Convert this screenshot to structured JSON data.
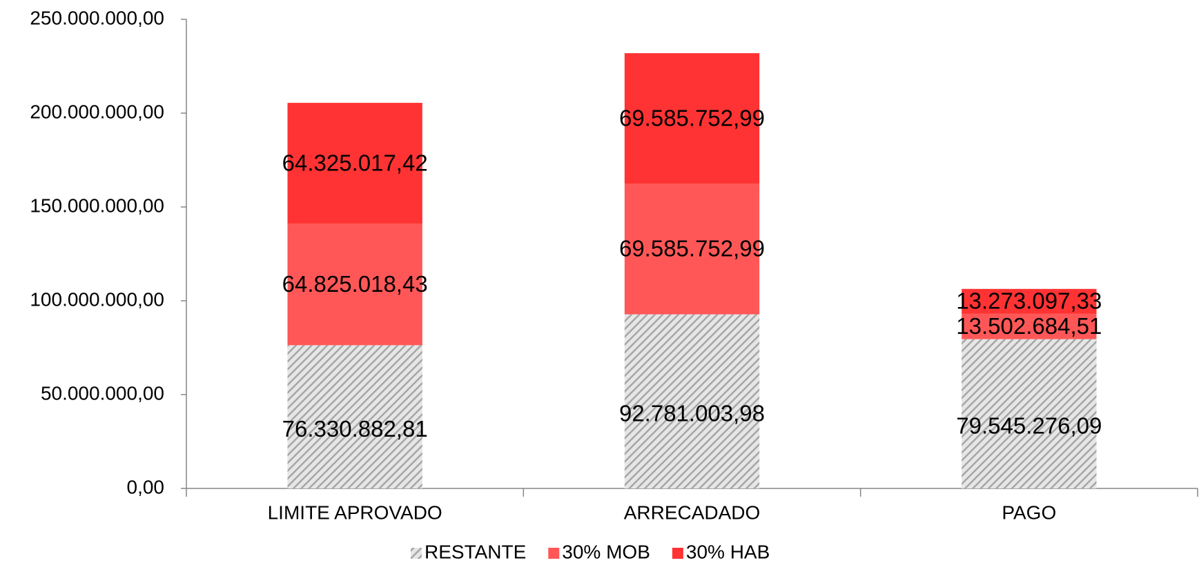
{
  "chart_data": {
    "type": "stacked_bar",
    "categories": [
      "LIMITE APROVADO",
      "ARRECADADO",
      "PAGO"
    ],
    "series": [
      {
        "name": "RESTANTE",
        "color": "#bfbfbf",
        "pattern": "diagonal-hatch",
        "values": [
          76330882.81,
          92781003.98,
          79545276.09
        ],
        "value_labels": [
          "76.330.882,81",
          "92.781.003,98",
          "79.545.276,09"
        ]
      },
      {
        "name": "30% MOB",
        "color": "#ff5757",
        "values": [
          64825018.43,
          69585752.99,
          13502684.51
        ],
        "value_labels": [
          "64.825.018,43",
          "69.585.752,99",
          "13.502.684,51"
        ]
      },
      {
        "name": "30% HAB",
        "color": "#ff3333",
        "values": [
          64325017.42,
          69585752.99,
          13273097.33
        ],
        "value_labels": [
          "64.325.017,42",
          "69.585.752,99",
          "13.273.097,33"
        ]
      }
    ],
    "ylim": [
      0,
      250000000
    ],
    "yticks": [
      {
        "value": 0,
        "label": "0,00"
      },
      {
        "value": 50000000,
        "label": "50.000.000,00"
      },
      {
        "value": 100000000,
        "label": "100.000.000,00"
      },
      {
        "value": 150000000,
        "label": "150.000.000,00"
      },
      {
        "value": 200000000,
        "label": "200.000.000,00"
      },
      {
        "value": 250000000,
        "label": "250.000.000,00"
      }
    ],
    "grid": false,
    "legend": "bottom"
  }
}
